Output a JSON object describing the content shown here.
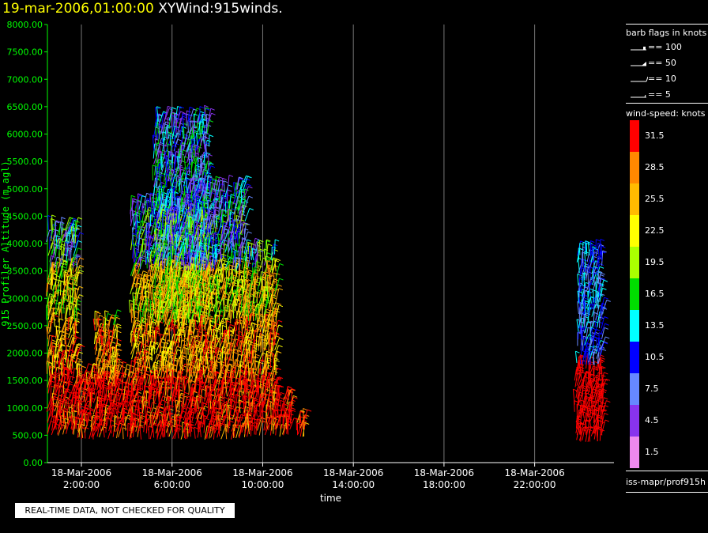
{
  "header": {
    "date": "19-mar-2006,01:00:00",
    "name": "XYWind:915winds."
  },
  "notice": "REAL-TIME DATA, NOT CHECKED FOR QUALITY",
  "barb_legend": {
    "title": "barb flags in knots",
    "items": [
      "== 100",
      "== 50",
      "== 10",
      "== 5"
    ]
  },
  "speed_legend": {
    "title": "wind-speed: knots",
    "entries": [
      {
        "label": "31.5",
        "color": "#ff0000"
      },
      {
        "label": "28.5",
        "color": "#ff8800"
      },
      {
        "label": "25.5",
        "color": "#ffbb00"
      },
      {
        "label": "22.5",
        "color": "#ffff00"
      },
      {
        "label": "19.5",
        "color": "#aaff00"
      },
      {
        "label": "16.5",
        "color": "#00dd00"
      },
      {
        "label": "13.5",
        "color": "#00ffff"
      },
      {
        "label": "10.5",
        "color": "#0000ff"
      },
      {
        "label": "7.5",
        "color": "#6688ff"
      },
      {
        "label": "4.5",
        "color": "#8833ee"
      },
      {
        "label": "1.5",
        "color": "#ee88ee"
      }
    ]
  },
  "source": "iss-mapr/prof915h",
  "chart_data": {
    "type": "scatter",
    "ylabel": "915 Profiler Altitude (m agl)",
    "xlabel": "time",
    "ylim": [
      0,
      8000
    ],
    "xlim_hours": [
      0.5,
      25.5
    ],
    "yticks": [
      "0.00",
      "500.00",
      "1000.00",
      "1500.00",
      "2000.00",
      "2500.00",
      "3000.00",
      "3500.00",
      "4000.00",
      "4500.00",
      "5000.00",
      "5500.00",
      "6000.00",
      "6500.00",
      "7000.00",
      "7500.00",
      "8000.00"
    ],
    "xticks": [
      {
        "h": 2,
        "date": "18-Mar-2006",
        "time": "2:00:00"
      },
      {
        "h": 6,
        "date": "18-Mar-2006",
        "time": "6:00:00"
      },
      {
        "h": 10,
        "date": "18-Mar-2006",
        "time": "10:00:00"
      },
      {
        "h": 14,
        "date": "18-Mar-2006",
        "time": "14:00:00"
      },
      {
        "h": 18,
        "date": "18-Mar-2006",
        "time": "18:00:00"
      },
      {
        "h": 22,
        "date": "18-Mar-2006",
        "time": "22:00:00"
      }
    ],
    "grid": true,
    "clusters": [
      {
        "h0": 0.5,
        "h1": 1.8,
        "z0": 500,
        "z1": 4300
      },
      {
        "h0": 1.8,
        "h1": 4.2,
        "z0": 450,
        "z1": 1600
      },
      {
        "h0": 2.6,
        "h1": 3.6,
        "z0": 1400,
        "z1": 2500
      },
      {
        "h0": 4.2,
        "h1": 6.8,
        "z0": 450,
        "z1": 4700
      },
      {
        "h0": 5.2,
        "h1": 7.6,
        "z0": 2500,
        "z1": 6300
      },
      {
        "h0": 6.8,
        "h1": 9.2,
        "z0": 450,
        "z1": 5000
      },
      {
        "h0": 9.2,
        "h1": 10.6,
        "z0": 500,
        "z1": 3800
      },
      {
        "h0": 10.6,
        "h1": 11.3,
        "z0": 500,
        "z1": 1200
      },
      {
        "h0": 11.5,
        "h1": 11.9,
        "z0": 500,
        "z1": 800
      },
      {
        "h0": 23.8,
        "h1": 25.0,
        "z0": 400,
        "z1": 1700
      },
      {
        "h0": 23.9,
        "h1": 25.0,
        "z0": 1700,
        "z1": 3800
      }
    ]
  }
}
